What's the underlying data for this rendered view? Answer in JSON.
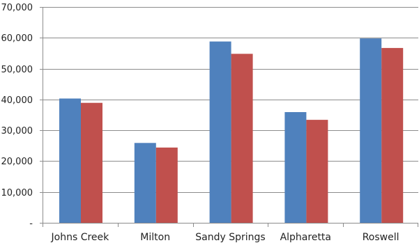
{
  "chart_data": {
    "type": "bar",
    "title": "",
    "xlabel": "",
    "ylabel": "",
    "categories": [
      "Johns Creek",
      "Milton",
      "Sandy Springs",
      "Alpharetta",
      "Roswell"
    ],
    "series": [
      {
        "values": [
          40300,
          25900,
          58800,
          35900,
          59800
        ],
        "color": "#4F81BD"
      },
      {
        "values": [
          38900,
          24400,
          54800,
          33400,
          56700
        ],
        "color": "#C0504D"
      }
    ],
    "ylim": [
      0,
      70000
    ],
    "yticks": [
      0,
      10000,
      20000,
      30000,
      40000,
      50000,
      60000,
      70000
    ],
    "ytick_labels": [
      "-",
      "10,000",
      "20,000",
      "30,000",
      "40,000",
      "50,000",
      "60,000",
      "70,000"
    ],
    "grid": true,
    "legend": "none"
  }
}
